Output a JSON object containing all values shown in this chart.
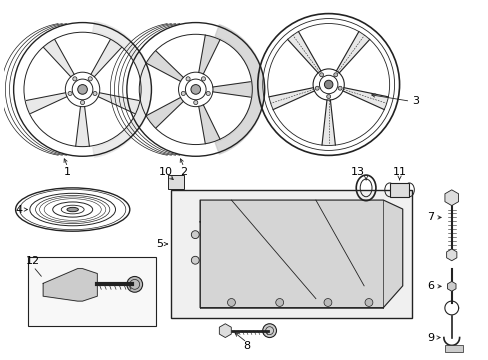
{
  "bg_color": "#ffffff",
  "line_color": "#222222",
  "label_color": "#000000",
  "fig_width": 4.89,
  "fig_height": 3.6
}
